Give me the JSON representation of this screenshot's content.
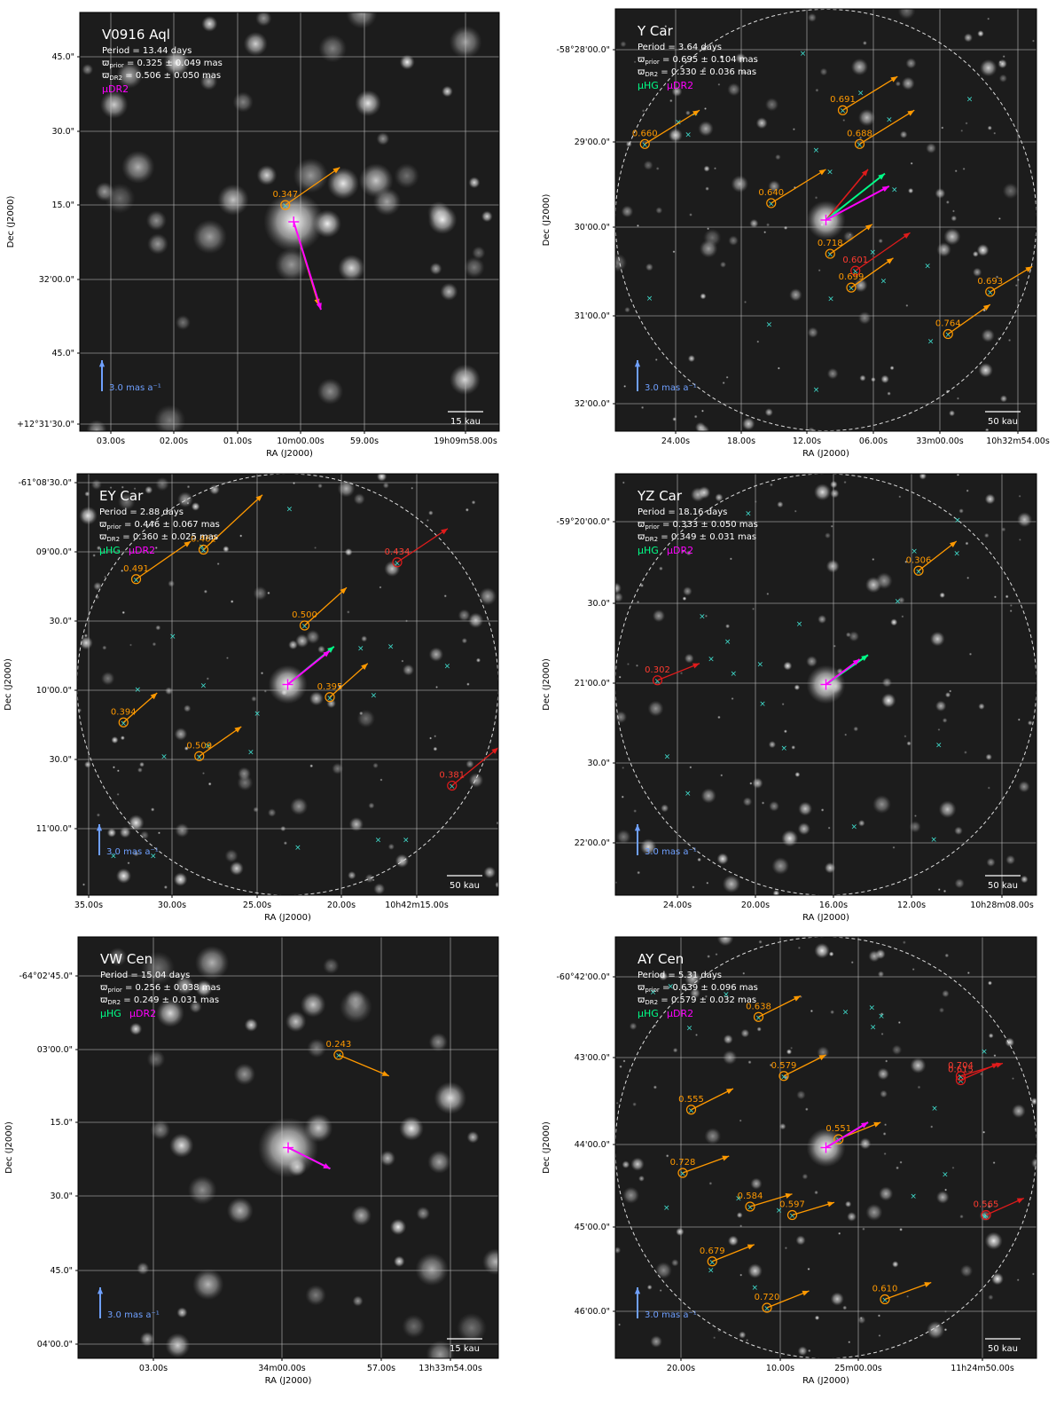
{
  "x_axis_label": "RA (J2000)",
  "y_axis_label": "Dec (J2000)",
  "colors": {
    "orange": "#ff9900",
    "red": "#e01b1b",
    "magenta": "#ff00ff",
    "green": "#00ff88",
    "cyan": "#40e0d0",
    "blue": "#6fa0ff",
    "grid": "#c8c8c8"
  },
  "panels": [
    {
      "title": "V0916 Aql",
      "period": "Period =  13.44 days",
      "plx_prior": "= 0.325 ± 0.049 mas",
      "plx_dr2": "= 0.506 ± 0.050 mas",
      "legend_hg": "",
      "legend_dr2": "μDR2",
      "scale_arrow": "3.0 mas a⁻¹",
      "scale_bar": "15 kau",
      "circle": false,
      "x_ticks": [
        "03.00s",
        "02.00s",
        "01.00s",
        "10m00.00s",
        "59.00s",
        "19h09m58.00s"
      ],
      "y_ticks": [
        "45.0\"",
        "30.0\"",
        "15.0\"",
        "32'00.0\"",
        "45.0\"",
        "+12°31'30.0\""
      ],
      "neighbors": [
        {
          "label": "0.347",
          "color": "orange"
        }
      ],
      "main_vectors": [
        {
          "name": "mu-dr2",
          "color": "magenta",
          "dx": 0.065,
          "dy": 0.21
        },
        {
          "name": "mu-orange",
          "color": "orange",
          "dx": 0.06,
          "dy": 0.2
        }
      ]
    },
    {
      "title": "Y Car",
      "period": "Period =   3.64 days",
      "plx_prior": "= 0.695 ± 0.104 mas",
      "plx_dr2": "= 0.330 ± 0.036 mas",
      "legend_hg": "μHG",
      "legend_dr2": "μDR2",
      "scale_arrow": "3.0 mas a⁻¹",
      "scale_bar": "50 kau",
      "circle": true,
      "x_ticks": [
        "24.00s",
        "18.00s",
        "12.00s",
        "06.00s",
        "33m00.00s",
        "10h32m54.00s"
      ],
      "y_ticks": [
        "-58°28'00.0\"",
        "29'00.0\"",
        "30'00.0\"",
        "31'00.0\"",
        "32'00.0\""
      ],
      "neighbors": [
        {
          "label": "0.660",
          "color": "orange"
        },
        {
          "label": "0.691",
          "color": "orange"
        },
        {
          "label": "0.688",
          "color": "orange"
        },
        {
          "label": "0.640",
          "color": "orange"
        },
        {
          "label": "0.718",
          "color": "orange"
        },
        {
          "label": "0.601",
          "color": "red"
        },
        {
          "label": "0.699",
          "color": "orange"
        },
        {
          "label": "0.693",
          "color": "orange"
        },
        {
          "label": "0.764",
          "color": "orange"
        }
      ]
    },
    {
      "title": "EY Car",
      "period": "Period =   2.88 days",
      "plx_prior": "= 0.446 ± 0.067 mas",
      "plx_dr2": "= 0.360 ± 0.025 mas",
      "legend_hg": "μHG",
      "legend_dr2": "μDR2",
      "scale_arrow": "3.0 mas a⁻¹",
      "scale_bar": "50 kau",
      "circle": true,
      "x_ticks": [
        "35.00s",
        "30.00s",
        "25.00s",
        "20.00s",
        "10h42m15.00s"
      ],
      "y_ticks": [
        "-61°08'30.0\"",
        "09'00.0\"",
        "30.0\"",
        "10'00.0\"",
        "30.0\"",
        "11'00.0\""
      ],
      "neighbors": [
        {
          "label": "0.491",
          "color": "orange"
        },
        {
          "label": "0.462",
          "color": "orange"
        },
        {
          "label": "0.434",
          "color": "red"
        },
        {
          "label": "0.500",
          "color": "orange"
        },
        {
          "label": "0.395",
          "color": "orange"
        },
        {
          "label": "0.394",
          "color": "orange"
        },
        {
          "label": "0.509",
          "color": "orange"
        },
        {
          "label": "0.381",
          "color": "red"
        }
      ]
    },
    {
      "title": "YZ Car",
      "period": "Period =  18.16 days",
      "plx_prior": "= 0.333 ± 0.050 mas",
      "plx_dr2": "= 0.349 ± 0.031 mas",
      "legend_hg": "μHG",
      "legend_dr2": "μDR2",
      "scale_arrow": "3.0 mas a⁻¹",
      "scale_bar": "50 kau",
      "circle": true,
      "x_ticks": [
        "24.00s",
        "20.00s",
        "16.00s",
        "12.00s",
        "10h28m08.00s"
      ],
      "y_ticks": [
        "-59°20'00.0\"",
        "30.0\"",
        "21'00.0\"",
        "30.0\"",
        "22'00.0\""
      ],
      "neighbors": [
        {
          "label": "0.306",
          "color": "orange"
        },
        {
          "label": "0.302",
          "color": "red"
        }
      ]
    },
    {
      "title": "VW Cen",
      "period": "Period =  15.04 days",
      "plx_prior": "= 0.256 ± 0.038 mas",
      "plx_dr2": "= 0.249 ± 0.031 mas",
      "legend_hg": "μHG",
      "legend_dr2": "μDR2",
      "scale_arrow": "3.0 mas a⁻¹",
      "scale_bar": "15 kau",
      "circle": false,
      "x_ticks": [
        "03.00s",
        "34m00.00s",
        "57.00s",
        "13h33m54.00s"
      ],
      "y_ticks": [
        "-64°02'45.0\"",
        "03'00.0\"",
        "15.0\"",
        "30.0\"",
        "45.0\"",
        "04'00.0\""
      ],
      "neighbors": [
        {
          "label": "0.243",
          "color": "orange"
        }
      ]
    },
    {
      "title": "AY Cen",
      "period": "Period =   5.31 days",
      "plx_prior": "= 0.639 ± 0.096 mas",
      "plx_dr2": "= 0.579 ± 0.032 mas",
      "legend_hg": "μHG",
      "legend_dr2": "μDR2",
      "scale_arrow": "3.0 mas a⁻¹",
      "scale_bar": "50 kau",
      "circle": true,
      "x_ticks": [
        "20.00s",
        "10.00s",
        "25m00.00s",
        "11h24m50.00s"
      ],
      "y_ticks": [
        "-60°42'00.0\"",
        "43'00.0\"",
        "44'00.0\"",
        "45'00.0\"",
        "46'00.0\""
      ],
      "neighbors": [
        {
          "label": "0.638",
          "color": "orange"
        },
        {
          "label": "0.579",
          "color": "orange"
        },
        {
          "label": "0.555",
          "color": "orange"
        },
        {
          "label": "0.615",
          "color": "red"
        },
        {
          "label": "0.704",
          "color": "red"
        },
        {
          "label": "0.551",
          "color": "orange"
        },
        {
          "label": "0.728",
          "color": "orange"
        },
        {
          "label": "0.584",
          "color": "orange"
        },
        {
          "label": "0.597",
          "color": "orange"
        },
        {
          "label": "0.565",
          "color": "red"
        },
        {
          "label": "0.679",
          "color": "orange"
        },
        {
          "label": "0.720",
          "color": "orange"
        },
        {
          "label": "0.610",
          "color": "orange"
        }
      ]
    }
  ]
}
